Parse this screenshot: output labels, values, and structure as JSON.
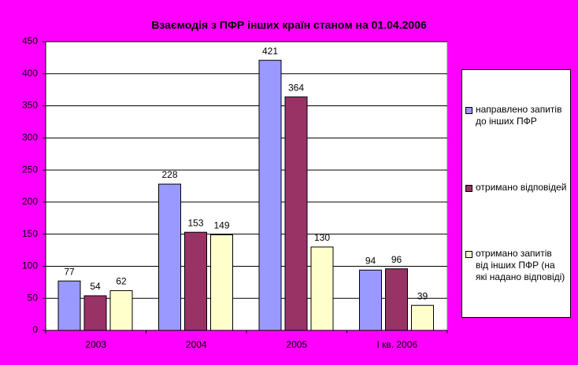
{
  "chart_data": {
    "type": "bar",
    "title": "Взаємодія з ПФР інших країн станом на 01.04.2006",
    "categories": [
      "2003",
      "2004",
      "2005",
      "І кв. 2006"
    ],
    "series": [
      {
        "name": "направлено запитів до інших ПФР",
        "color": "#9999ff",
        "values": [
          77,
          228,
          421,
          94
        ]
      },
      {
        "name": "отримано відповідей",
        "color": "#993366",
        "values": [
          54,
          153,
          364,
          96
        ]
      },
      {
        "name": "отримано запитів від інших ПФР (на які надано відповіді)",
        "color": "#ffffcc",
        "values": [
          62,
          149,
          130,
          39
        ]
      }
    ],
    "ylim": [
      0,
      450
    ],
    "yticks": [
      0,
      50,
      100,
      150,
      200,
      250,
      300,
      350,
      400,
      450
    ],
    "grid": true
  }
}
